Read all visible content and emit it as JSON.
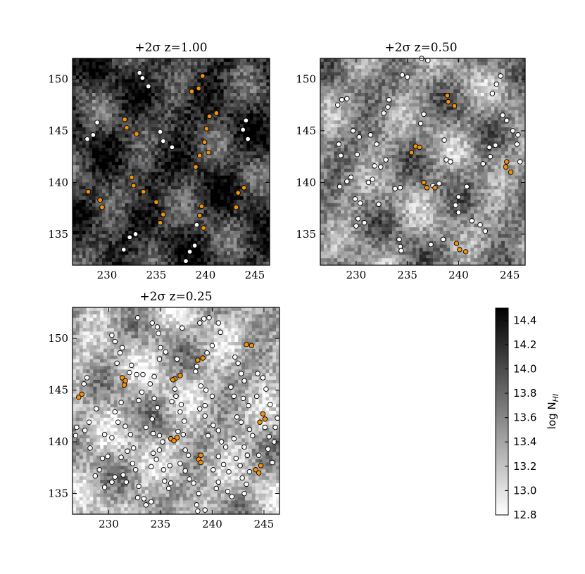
{
  "chart_data": [
    {
      "type": "heatmap",
      "title": "+2σ z=1.00",
      "xlim": [
        226.5,
        246.5
      ],
      "ylim": [
        132,
        152
      ],
      "xticks": [
        230,
        235,
        240,
        245
      ],
      "yticks": [
        135,
        140,
        145,
        150
      ],
      "density_level": 0.78,
      "white_points": [
        [
          233.3,
          150.6
        ],
        [
          233.6,
          150.1
        ],
        [
          234.2,
          149.3
        ],
        [
          229.0,
          145.8
        ],
        [
          228.6,
          144.6
        ],
        [
          228.0,
          144.2
        ],
        [
          235.4,
          144.9
        ],
        [
          235.7,
          144.0
        ],
        [
          236.6,
          143.4
        ],
        [
          244.1,
          146.0
        ],
        [
          243.8,
          145.1
        ],
        [
          244.3,
          144.2
        ],
        [
          232.9,
          135.0
        ],
        [
          232.3,
          134.7
        ],
        [
          231.7,
          133.5
        ],
        [
          238.4,
          133.3
        ],
        [
          238.9,
          133.9
        ],
        [
          238.0,
          132.4
        ],
        [
          239.1,
          135.9
        ]
      ],
      "orange_points": [
        [
          239.7,
          150.3
        ],
        [
          239.3,
          149.1
        ],
        [
          238.6,
          148.8
        ],
        [
          241.1,
          146.7
        ],
        [
          240.4,
          146.4
        ],
        [
          240.1,
          145.2
        ],
        [
          239.9,
          143.9
        ],
        [
          239.4,
          142.6
        ],
        [
          240.3,
          142.9
        ],
        [
          239.0,
          141.5
        ],
        [
          231.8,
          146.1
        ],
        [
          232.0,
          145.3
        ],
        [
          233.0,
          144.7
        ],
        [
          232.5,
          140.5
        ],
        [
          232.7,
          139.7
        ],
        [
          233.7,
          139.1
        ],
        [
          228.1,
          139.1
        ],
        [
          229.3,
          138.3
        ],
        [
          229.5,
          137.6
        ],
        [
          235.0,
          138.1
        ],
        [
          235.7,
          136.9
        ],
        [
          235.4,
          136.1
        ],
        [
          239.6,
          137.7
        ],
        [
          239.4,
          136.8
        ],
        [
          239.8,
          135.6
        ],
        [
          243.3,
          139.0
        ],
        [
          243.9,
          139.5
        ],
        [
          243.1,
          137.6
        ]
      ]
    },
    {
      "type": "heatmap",
      "title": "+2σ z=0.50",
      "xlim": [
        226.5,
        246.5
      ],
      "ylim": [
        132,
        152
      ],
      "xticks": [
        230,
        235,
        240,
        245
      ],
      "yticks": [
        135,
        140,
        145,
        150
      ],
      "density_level": 0.45,
      "white_points": [
        [
          236.4,
          152.0
        ],
        [
          237.0,
          151.8
        ],
        [
          234.5,
          150.4
        ],
        [
          235.0,
          150.2
        ],
        [
          228.6,
          148.0
        ],
        [
          229.1,
          148.1
        ],
        [
          228.2,
          147.5
        ],
        [
          233.2,
          148.0
        ],
        [
          233.1,
          147.3
        ],
        [
          232.7,
          146.7
        ],
        [
          236.6,
          146.6
        ],
        [
          236.3,
          145.7
        ],
        [
          244.1,
          150.3
        ],
        [
          243.7,
          149.5
        ],
        [
          243.3,
          148.6
        ],
        [
          244.3,
          146.5
        ],
        [
          244.7,
          146.0
        ],
        [
          245.3,
          145.0
        ],
        [
          245.8,
          144.6
        ],
        [
          245.7,
          143.7
        ],
        [
          229.7,
          145.0
        ],
        [
          230.3,
          144.4
        ],
        [
          228.3,
          143.7
        ],
        [
          231.4,
          144.6
        ],
        [
          232.0,
          143.7
        ],
        [
          228.5,
          142.6
        ],
        [
          230.1,
          142.7
        ],
        [
          231.8,
          141.6
        ],
        [
          232.4,
          141.5
        ],
        [
          232.9,
          142.2
        ],
        [
          243.0,
          143.4
        ],
        [
          243.6,
          143.6
        ],
        [
          243.1,
          142.5
        ],
        [
          242.4,
          141.8
        ],
        [
          229.1,
          140.1
        ],
        [
          229.5,
          140.5
        ],
        [
          228.4,
          139.6
        ],
        [
          231.2,
          140.0
        ],
        [
          231.6,
          140.3
        ],
        [
          233.8,
          139.4
        ],
        [
          234.3,
          139.5
        ],
        [
          229.9,
          138.4
        ],
        [
          230.4,
          138.0
        ],
        [
          232.2,
          137.9
        ],
        [
          240.8,
          139.6
        ],
        [
          240.0,
          138.6
        ],
        [
          239.7,
          137.8
        ],
        [
          240.0,
          137.1
        ],
        [
          230.2,
          136.5
        ],
        [
          230.8,
          136.1
        ],
        [
          230.0,
          135.8
        ],
        [
          234.2,
          134.5
        ],
        [
          234.3,
          133.8
        ],
        [
          234.4,
          133.4
        ],
        [
          237.3,
          134.0
        ],
        [
          238.5,
          134.5
        ],
        [
          241.3,
          136.3
        ],
        [
          242.1,
          135.9
        ],
        [
          242.6,
          135.3
        ],
        [
          238.6,
          144.1
        ],
        [
          238.8,
          142.2
        ],
        [
          239.2,
          142.0
        ],
        [
          237.5,
          139.7
        ],
        [
          238.1,
          139.9
        ],
        [
          246.0,
          142.0
        ]
      ],
      "orange_points": [
        [
          238.9,
          148.4
        ],
        [
          239.0,
          147.8
        ],
        [
          239.6,
          147.4
        ],
        [
          235.8,
          143.5
        ],
        [
          236.2,
          143.4
        ],
        [
          235.4,
          142.9
        ],
        [
          236.6,
          140.0
        ],
        [
          236.9,
          139.5
        ],
        [
          237.7,
          139.5
        ],
        [
          244.7,
          142.0
        ],
        [
          244.6,
          141.5
        ],
        [
          245.1,
          141.0
        ],
        [
          239.8,
          134.1
        ],
        [
          240.1,
          133.5
        ],
        [
          240.7,
          133.3
        ]
      ]
    },
    {
      "type": "heatmap",
      "title": "+2σ z=0.25",
      "xlim": [
        226.5,
        246.5
      ],
      "ylim": [
        133,
        153
      ],
      "xticks": [
        230,
        235,
        240,
        245
      ],
      "yticks": [
        135,
        140,
        145,
        150
      ],
      "density_level": 0.3,
      "white_points": [
        [
          227.6,
          145.6
        ],
        [
          227.9,
          146.2
        ],
        [
          228.8,
          143.2
        ],
        [
          228.1,
          141.9
        ],
        [
          227.7,
          141.1
        ],
        [
          228.2,
          139.4
        ],
        [
          229.4,
          138.4
        ],
        [
          229.9,
          138.6
        ],
        [
          228.7,
          136.7
        ],
        [
          229.1,
          137.3
        ],
        [
          230.3,
          136.1
        ],
        [
          230.6,
          136.6
        ],
        [
          229.6,
          135.6
        ],
        [
          230.6,
          149.7
        ],
        [
          230.3,
          150.3
        ],
        [
          231.1,
          148.6
        ],
        [
          231.3,
          149.1
        ],
        [
          230.8,
          147.6
        ],
        [
          232.2,
          147.4
        ],
        [
          232.0,
          146.7
        ],
        [
          232.7,
          146.5
        ],
        [
          233.3,
          146.5
        ],
        [
          234.4,
          146.3
        ],
        [
          234.0,
          145.6
        ],
        [
          233.2,
          144.8
        ],
        [
          232.9,
          144.0
        ],
        [
          231.2,
          143.8
        ],
        [
          230.6,
          142.9
        ],
        [
          230.9,
          141.9
        ],
        [
          230.3,
          140.4
        ],
        [
          229.6,
          140.7
        ],
        [
          231.6,
          141.5
        ],
        [
          232.1,
          140.7
        ],
        [
          232.4,
          139.4
        ],
        [
          231.8,
          139.1
        ],
        [
          231.2,
          138.5
        ],
        [
          232.3,
          137.9
        ],
        [
          232.6,
          137.3
        ],
        [
          231.4,
          136.8
        ],
        [
          231.7,
          136.1
        ],
        [
          232.9,
          135.7
        ],
        [
          232.8,
          134.6
        ],
        [
          233.4,
          134.5
        ],
        [
          233.6,
          133.9
        ],
        [
          234.1,
          134.2
        ],
        [
          234.2,
          151.5
        ],
        [
          234.7,
          151.1
        ],
        [
          234.8,
          150.5
        ],
        [
          235.0,
          149.1
        ],
        [
          235.5,
          148.7
        ],
        [
          234.9,
          148.0
        ],
        [
          234.4,
          144.2
        ],
        [
          234.7,
          143.3
        ],
        [
          234.2,
          142.2
        ],
        [
          233.6,
          141.4
        ],
        [
          234.3,
          140.8
        ],
        [
          234.9,
          140.6
        ],
        [
          235.2,
          140.0
        ],
        [
          234.9,
          139.2
        ],
        [
          234.3,
          138.9
        ],
        [
          234.6,
          138.3
        ],
        [
          234.1,
          137.6
        ],
        [
          235.3,
          137.3
        ],
        [
          235.9,
          137.7
        ],
        [
          235.4,
          136.2
        ],
        [
          236.0,
          136.0
        ],
        [
          235.8,
          135.5
        ],
        [
          236.4,
          145.1
        ],
        [
          236.5,
          144.4
        ],
        [
          236.1,
          143.9
        ],
        [
          237.0,
          143.6
        ],
        [
          236.9,
          142.9
        ],
        [
          237.3,
          142.0
        ],
        [
          236.7,
          141.0
        ],
        [
          237.2,
          140.7
        ],
        [
          237.4,
          139.2
        ],
        [
          237.7,
          138.7
        ],
        [
          236.9,
          137.9
        ],
        [
          237.4,
          137.2
        ],
        [
          237.8,
          136.4
        ],
        [
          238.2,
          136.0
        ],
        [
          238.7,
          135.0
        ],
        [
          238.5,
          133.9
        ],
        [
          239.3,
          133.4
        ],
        [
          238.6,
          133.3
        ],
        [
          238.8,
          151.5
        ],
        [
          239.2,
          151.9
        ],
        [
          239.7,
          152.0
        ],
        [
          240.6,
          151.5
        ],
        [
          240.8,
          150.6
        ],
        [
          240.0,
          149.3
        ],
        [
          239.5,
          148.6
        ],
        [
          238.5,
          147.3
        ],
        [
          238.4,
          146.8
        ],
        [
          238.9,
          145.4
        ],
        [
          239.4,
          145.0
        ],
        [
          240.0,
          144.4
        ],
        [
          239.3,
          143.5
        ],
        [
          238.8,
          143.2
        ],
        [
          239.3,
          142.5
        ],
        [
          240.1,
          141.6
        ],
        [
          240.6,
          141.1
        ],
        [
          239.6,
          140.6
        ],
        [
          240.9,
          140.0
        ],
        [
          241.3,
          139.5
        ],
        [
          240.6,
          138.6
        ],
        [
          241.1,
          137.8
        ],
        [
          241.6,
          137.1
        ],
        [
          240.1,
          137.3
        ],
        [
          240.6,
          136.1
        ],
        [
          240.4,
          135.5
        ],
        [
          241.5,
          135.2
        ],
        [
          241.9,
          134.7
        ],
        [
          242.2,
          148.2
        ],
        [
          242.5,
          147.6
        ],
        [
          242.8,
          146.6
        ],
        [
          243.1,
          145.9
        ],
        [
          241.8,
          145.3
        ],
        [
          242.1,
          144.4
        ],
        [
          243.0,
          144.2
        ],
        [
          243.5,
          143.5
        ],
        [
          242.4,
          142.4
        ],
        [
          242.8,
          141.9
        ],
        [
          243.6,
          141.2
        ],
        [
          243.9,
          140.6
        ],
        [
          242.1,
          140.3
        ],
        [
          243.1,
          139.5
        ],
        [
          243.4,
          138.7
        ],
        [
          242.3,
          138.4
        ],
        [
          242.7,
          137.7
        ],
        [
          243.6,
          137.1
        ],
        [
          242.9,
          136.5
        ],
        [
          243.3,
          135.9
        ],
        [
          243.1,
          135.0
        ],
        [
          244.4,
          146.6
        ],
        [
          244.9,
          146.2
        ],
        [
          245.2,
          145.1
        ],
        [
          244.3,
          144.4
        ],
        [
          245.6,
          143.6
        ],
        [
          245.1,
          141.4
        ],
        [
          245.5,
          140.5
        ],
        [
          246.1,
          141.4
        ],
        [
          246.3,
          142.3
        ],
        [
          246.0,
          140.0
        ],
        [
          245.4,
          139.3
        ],
        [
          244.5,
          138.7
        ],
        [
          245.8,
          138.0
        ],
        [
          232.8,
          152.0
        ],
        [
          236.6,
          148.0
        ],
        [
          237.1,
          151.0
        ],
        [
          226.8,
          140.6
        ],
        [
          226.9,
          141.4
        ]
      ],
      "orange_points": [
        [
          227.4,
          144.6
        ],
        [
          227.1,
          144.3
        ],
        [
          231.3,
          146.2
        ],
        [
          231.6,
          145.9
        ],
        [
          231.5,
          145.5
        ],
        [
          236.4,
          146.1
        ],
        [
          236.9,
          146.4
        ],
        [
          236.2,
          146.0
        ],
        [
          238.6,
          147.9
        ],
        [
          239.1,
          148.1
        ],
        [
          243.3,
          149.4
        ],
        [
          243.8,
          149.3
        ],
        [
          244.9,
          142.7
        ],
        [
          245.1,
          142.2
        ],
        [
          244.6,
          141.9
        ],
        [
          236.0,
          140.3
        ],
        [
          236.6,
          140.4
        ],
        [
          236.3,
          140.1
        ],
        [
          238.9,
          138.7
        ],
        [
          238.7,
          138.3
        ],
        [
          238.9,
          138.0
        ],
        [
          244.7,
          137.7
        ],
        [
          244.2,
          137.3
        ],
        [
          244.5,
          137.0
        ]
      ]
    }
  ],
  "colorbar": {
    "label": "log N",
    "label_subscript": "HI",
    "range": [
      12.8,
      14.5
    ],
    "ticks": [
      "12.8",
      "13.0",
      "13.2",
      "13.4",
      "13.6",
      "13.8",
      "14.0",
      "14.2",
      "14.4"
    ],
    "tick_values": [
      12.8,
      13.0,
      13.2,
      13.4,
      13.6,
      13.8,
      14.0,
      14.2,
      14.4
    ]
  },
  "colors": {
    "orange_point": "#f0900f",
    "white_point": "#ffffff",
    "point_edge": "#000000"
  }
}
